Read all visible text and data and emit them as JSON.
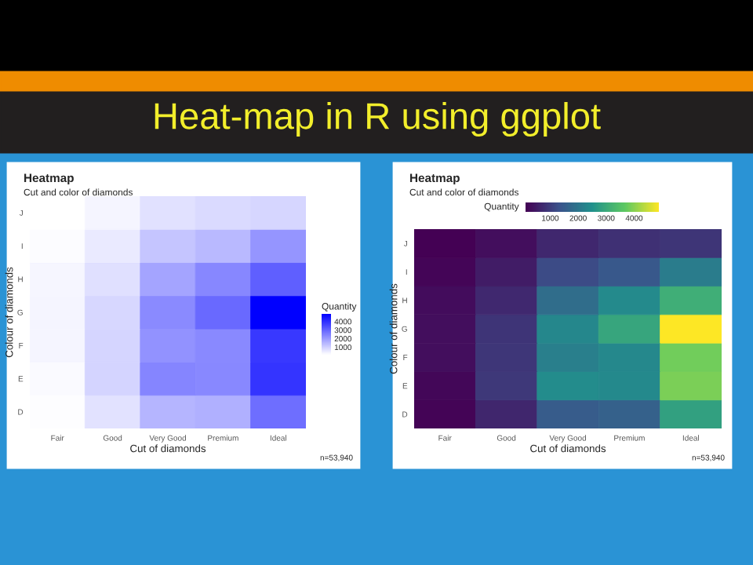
{
  "chart_data": [
    {
      "type": "heatmap",
      "title": "Heatmap",
      "subtitle": "Cut and color of diamonds",
      "xlabel": "Cut of diamonds",
      "ylabel": "Colour of diamonds",
      "legend_title": "Quantity",
      "annotations": [
        "Heat-map in R using ggplot",
        "n=53,940"
      ],
      "categories": [
        "Fair",
        "Good",
        "Very Good",
        "Premium",
        "Ideal"
      ],
      "y_categories": [
        "J",
        "I",
        "H",
        "G",
        "F",
        "E",
        "D"
      ],
      "cells": [
        [
          119,
          307,
          678,
          808,
          896
        ],
        [
          175,
          522,
          1204,
          1428,
          2093
        ],
        [
          303,
          702,
          1824,
          2360,
          3115
        ],
        [
          314,
          871,
          2299,
          2924,
          4884
        ],
        [
          312,
          909,
          2164,
          2331,
          3826
        ],
        [
          224,
          933,
          2400,
          2337,
          3903
        ],
        [
          163,
          662,
          1513,
          1603,
          2834
        ]
      ],
      "colors": [
        "#ffffff",
        "#0000ff"
      ],
      "clim": [
        119,
        4884
      ],
      "cticks": [
        1000,
        2000,
        3000,
        4000
      ]
    },
    {
      "type": "heatmap",
      "title": "Heatmap",
      "subtitle": "Cut and color of diamonds",
      "xlabel": "Cut of diamonds",
      "ylabel": "Colour of diamonds",
      "legend_title": "Quantity",
      "annotations": [
        "n=53,940"
      ],
      "categories": [
        "Fair",
        "Good",
        "Very Good",
        "Premium",
        "Ideal"
      ],
      "y_categories": [
        "J",
        "I",
        "H",
        "G",
        "F",
        "E",
        "D"
      ],
      "cells": [
        [
          119,
          307,
          678,
          808,
          896
        ],
        [
          175,
          522,
          1204,
          1428,
          2093
        ],
        [
          303,
          702,
          1824,
          2360,
          3115
        ],
        [
          314,
          871,
          2299,
          2924,
          4884
        ],
        [
          312,
          909,
          2164,
          2331,
          3826
        ],
        [
          224,
          933,
          2400,
          2337,
          3903
        ],
        [
          163,
          662,
          1513,
          1603,
          2834
        ]
      ],
      "colors": [
        "#440154",
        "#3b528b",
        "#21918c",
        "#5ec962",
        "#fde725"
      ],
      "clim": [
        119,
        4884
      ],
      "cticks": [
        1000,
        2000,
        3000,
        4000
      ]
    }
  ]
}
